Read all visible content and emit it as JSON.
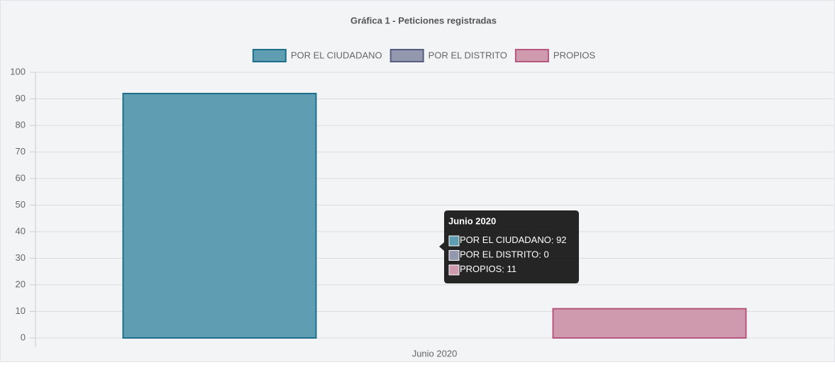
{
  "chart_data": {
    "type": "bar",
    "title": "Gráfica 1 - Peticiones registradas",
    "categories": [
      "Junio 2020"
    ],
    "series": [
      {
        "name": "POR EL CIUDADANO",
        "color": "#5f9db2",
        "border_color": "#1f6e8c",
        "values": [
          92
        ]
      },
      {
        "name": "POR EL DISTRITO",
        "color": "#9398ae",
        "border_color": "#565d80",
        "values": [
          0
        ]
      },
      {
        "name": "PROPIOS",
        "color": "#cf9aae",
        "border_color": "#b5577f",
        "values": [
          11
        ]
      }
    ],
    "ylim": [
      0,
      100
    ],
    "yticks": [
      0,
      10,
      20,
      30,
      40,
      50,
      60,
      70,
      80,
      90,
      100
    ],
    "grid": true,
    "legend": "top",
    "tooltip": {
      "title": "Junio 2020"
    }
  }
}
